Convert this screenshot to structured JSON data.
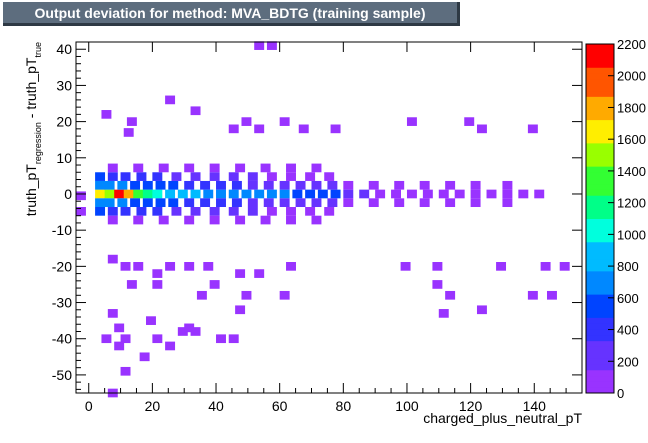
{
  "title": "Output deviation for method: MVA_BDTG (training sample)",
  "chart_data": {
    "type": "heatmap",
    "xlabel": "charged_plus_neutral_pT",
    "ylabel_parts": [
      "truth_pT",
      "regression",
      " - truth_pT",
      "true"
    ],
    "xlim": [
      -4,
      155
    ],
    "ylim": [
      -55,
      42
    ],
    "xticks": [
      0,
      20,
      40,
      60,
      80,
      100,
      120,
      140
    ],
    "yticks": [
      -50,
      -40,
      -30,
      -20,
      -10,
      0,
      10,
      20,
      30,
      40
    ],
    "zlim": [
      0,
      2200
    ],
    "zticks": [
      0,
      200,
      400,
      600,
      800,
      1000,
      1200,
      1400,
      1600,
      1800,
      2000,
      2200
    ],
    "bin_width_x": 3.125,
    "bin_width_y": 2.4,
    "cells": [
      [
        -4,
        -0.5,
        40
      ],
      [
        -4,
        -4.8,
        40
      ],
      [
        2,
        0.0,
        1600
      ],
      [
        5,
        0.0,
        1500
      ],
      [
        8,
        0.0,
        2100
      ],
      [
        11,
        0.0,
        1800
      ],
      [
        14,
        0.0,
        1300
      ],
      [
        17,
        0.0,
        1100
      ],
      [
        20,
        0.0,
        1000
      ],
      [
        24,
        0.0,
        900
      ],
      [
        28,
        0.0,
        850
      ],
      [
        32,
        0.0,
        800
      ],
      [
        36,
        0.0,
        780
      ],
      [
        40,
        0.0,
        760
      ],
      [
        44,
        0.0,
        740
      ],
      [
        48,
        0.0,
        720
      ],
      [
        52,
        0.0,
        700
      ],
      [
        56,
        0.0,
        680
      ],
      [
        60,
        0.0,
        640
      ],
      [
        64,
        0.0,
        600
      ],
      [
        68,
        0.0,
        560
      ],
      [
        72,
        0.0,
        520
      ],
      [
        76,
        0.0,
        480
      ],
      [
        2,
        2.4,
        750
      ],
      [
        5,
        2.4,
        700
      ],
      [
        9,
        2.4,
        650
      ],
      [
        13,
        2.4,
        600
      ],
      [
        17,
        2.4,
        560
      ],
      [
        21,
        2.4,
        520
      ],
      [
        25,
        2.4,
        480
      ],
      [
        30,
        2.4,
        440
      ],
      [
        35,
        2.4,
        400
      ],
      [
        40,
        2.4,
        360
      ],
      [
        45,
        2.4,
        330
      ],
      [
        50,
        2.4,
        300
      ],
      [
        55,
        2.4,
        270
      ],
      [
        60,
        2.4,
        250
      ],
      [
        65,
        2.4,
        220
      ],
      [
        70,
        2.4,
        200
      ],
      [
        75,
        2.4,
        180
      ],
      [
        2,
        -2.4,
        750
      ],
      [
        5,
        -2.4,
        700
      ],
      [
        9,
        -2.4,
        650
      ],
      [
        13,
        -2.4,
        600
      ],
      [
        17,
        -2.4,
        560
      ],
      [
        21,
        -2.4,
        520
      ],
      [
        25,
        -2.4,
        480
      ],
      [
        30,
        -2.4,
        440
      ],
      [
        35,
        -2.4,
        400
      ],
      [
        40,
        -2.4,
        360
      ],
      [
        45,
        -2.4,
        330
      ],
      [
        50,
        -2.4,
        300
      ],
      [
        55,
        -2.4,
        270
      ],
      [
        60,
        -2.4,
        250
      ],
      [
        65,
        -2.4,
        220
      ],
      [
        70,
        -2.4,
        200
      ],
      [
        75,
        -2.4,
        180
      ],
      [
        2,
        4.8,
        480
      ],
      [
        6,
        4.8,
        450
      ],
      [
        10,
        4.8,
        420
      ],
      [
        15,
        4.8,
        380
      ],
      [
        20,
        4.8,
        340
      ],
      [
        26,
        4.8,
        300
      ],
      [
        32,
        4.8,
        260
      ],
      [
        38,
        4.8,
        230
      ],
      [
        44,
        4.8,
        200
      ],
      [
        50,
        4.8,
        170
      ],
      [
        56,
        4.8,
        140
      ],
      [
        62,
        4.8,
        120
      ],
      [
        68,
        4.8,
        100
      ],
      [
        74,
        4.8,
        80
      ],
      [
        2,
        -4.8,
        480
      ],
      [
        6,
        -4.8,
        450
      ],
      [
        10,
        -4.8,
        420
      ],
      [
        15,
        -4.8,
        380
      ],
      [
        20,
        -4.8,
        340
      ],
      [
        26,
        -4.8,
        300
      ],
      [
        32,
        -4.8,
        260
      ],
      [
        38,
        -4.8,
        230
      ],
      [
        44,
        -4.8,
        200
      ],
      [
        50,
        -4.8,
        170
      ],
      [
        56,
        -4.8,
        140
      ],
      [
        62,
        -4.8,
        120
      ],
      [
        68,
        -4.8,
        100
      ],
      [
        74,
        -4.8,
        80
      ],
      [
        80,
        0.0,
        200
      ],
      [
        85,
        0.0,
        170
      ],
      [
        90,
        0.0,
        140
      ],
      [
        95,
        0.0,
        120
      ],
      [
        100,
        0.0,
        100
      ],
      [
        105,
        0.0,
        80
      ],
      [
        110,
        0.0,
        60
      ],
      [
        115,
        0.0,
        50
      ],
      [
        120,
        0.0,
        40
      ],
      [
        125,
        0.0,
        30
      ],
      [
        130,
        0.0,
        20
      ],
      [
        135,
        0.0,
        15
      ],
      [
        140,
        0.0,
        10
      ],
      [
        80,
        2.4,
        130
      ],
      [
        88,
        2.4,
        100
      ],
      [
        96,
        2.4,
        70
      ],
      [
        104,
        2.4,
        50
      ],
      [
        112,
        2.4,
        35
      ],
      [
        120,
        2.4,
        20
      ],
      [
        130,
        2.4,
        10
      ],
      [
        80,
        -2.4,
        130
      ],
      [
        88,
        -2.4,
        100
      ],
      [
        96,
        -2.4,
        70
      ],
      [
        104,
        -2.4,
        50
      ],
      [
        112,
        -2.4,
        35
      ],
      [
        120,
        -2.4,
        20
      ],
      [
        130,
        -2.4,
        10
      ],
      [
        6,
        7.2,
        150
      ],
      [
        14,
        7.2,
        130
      ],
      [
        22,
        7.2,
        110
      ],
      [
        30,
        7.2,
        90
      ],
      [
        38,
        7.2,
        70
      ],
      [
        46,
        7.2,
        55
      ],
      [
        54,
        7.2,
        40
      ],
      [
        62,
        7.2,
        30
      ],
      [
        70,
        7.2,
        20
      ],
      [
        6,
        -7.2,
        150
      ],
      [
        14,
        -7.2,
        130
      ],
      [
        22,
        -7.2,
        110
      ],
      [
        30,
        -7.2,
        90
      ],
      [
        38,
        -7.2,
        70
      ],
      [
        46,
        -7.2,
        55
      ],
      [
        54,
        -7.2,
        40
      ],
      [
        62,
        -7.2,
        30
      ],
      [
        70,
        -7.2,
        20
      ],
      [
        4,
        22,
        5
      ],
      [
        11,
        17,
        5
      ],
      [
        12,
        20,
        5
      ],
      [
        24,
        26,
        5
      ],
      [
        32,
        23,
        5
      ],
      [
        44,
        18,
        5
      ],
      [
        48,
        20,
        5
      ],
      [
        52,
        18,
        5
      ],
      [
        60,
        20,
        5
      ],
      [
        66,
        18,
        5
      ],
      [
        76,
        18,
        5
      ],
      [
        100,
        20,
        5
      ],
      [
        118,
        20,
        5
      ],
      [
        122,
        18,
        5
      ],
      [
        138,
        18,
        5
      ],
      [
        6,
        -18,
        5
      ],
      [
        10,
        -20,
        5
      ],
      [
        14,
        -20,
        5
      ],
      [
        20,
        -22,
        5
      ],
      [
        24,
        -20,
        5
      ],
      [
        30,
        -20,
        5
      ],
      [
        36,
        -20,
        5
      ],
      [
        46,
        -22,
        5
      ],
      [
        52,
        -22,
        5
      ],
      [
        62,
        -20,
        5
      ],
      [
        98,
        -20,
        5
      ],
      [
        108,
        -20,
        5
      ],
      [
        128,
        -20,
        5
      ],
      [
        142,
        -20,
        5
      ],
      [
        148,
        -20,
        5
      ],
      [
        12,
        -25,
        5
      ],
      [
        20,
        -25,
        5
      ],
      [
        34,
        -28,
        5
      ],
      [
        38,
        -25,
        5
      ],
      [
        48,
        -28,
        5
      ],
      [
        60,
        -28,
        5
      ],
      [
        108,
        -25,
        5
      ],
      [
        112,
        -28,
        5
      ],
      [
        144,
        -28,
        5
      ],
      [
        6,
        -33,
        5
      ],
      [
        18,
        -35,
        5
      ],
      [
        28,
        -38,
        5
      ],
      [
        32,
        -38,
        5
      ],
      [
        46,
        -32,
        5
      ],
      [
        110,
        -33,
        5
      ],
      [
        122,
        -32,
        5
      ],
      [
        138,
        -28,
        5
      ],
      [
        8,
        -37,
        5
      ],
      [
        30,
        -37,
        5
      ],
      [
        40,
        -40,
        5
      ],
      [
        44,
        -40,
        5
      ],
      [
        10,
        -40,
        5
      ],
      [
        24,
        -42,
        5
      ],
      [
        8,
        -42,
        5
      ],
      [
        16,
        -45,
        5
      ],
      [
        10,
        -49,
        5
      ],
      [
        6,
        -55,
        5
      ],
      [
        52,
        41,
        5
      ],
      [
        56,
        41,
        5
      ],
      [
        4,
        -40,
        5
      ],
      [
        20,
        -40,
        5
      ]
    ],
    "palette": [
      "#9933ff",
      "#6633ff",
      "#3333ff",
      "#0044ff",
      "#0088ff",
      "#00bbff",
      "#00ffdd",
      "#00ff88",
      "#33ff33",
      "#99ff00",
      "#ffee00",
      "#ffaa00",
      "#ff5500",
      "#ff0000"
    ]
  }
}
